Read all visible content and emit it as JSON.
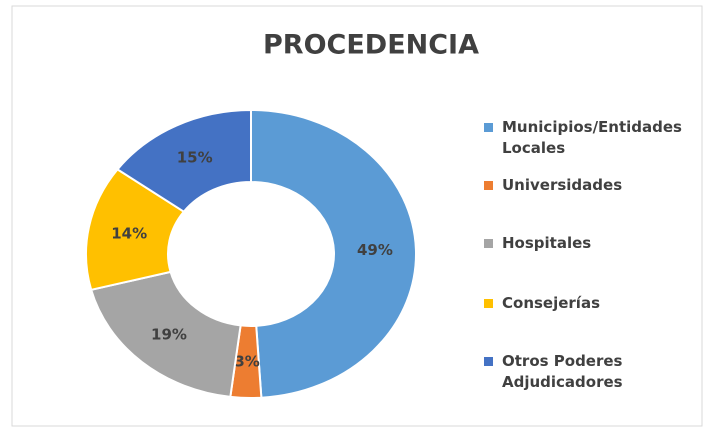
{
  "chart_data": {
    "type": "donut",
    "title": "PROCEDENCIA",
    "categories": [
      "Municipios/Entidades Locales",
      "Universidades",
      "Hospitales",
      "Consejerías",
      "Otros Poderes Adjudicadores"
    ],
    "values": [
      49,
      3,
      19,
      14,
      15
    ],
    "value_labels": [
      "49%",
      "3%",
      "19%",
      "14%",
      "15%"
    ],
    "colors": [
      "#5b9bd5",
      "#ed7d31",
      "#a5a5a5",
      "#ffc000",
      "#4472c4"
    ],
    "legend": "right"
  }
}
